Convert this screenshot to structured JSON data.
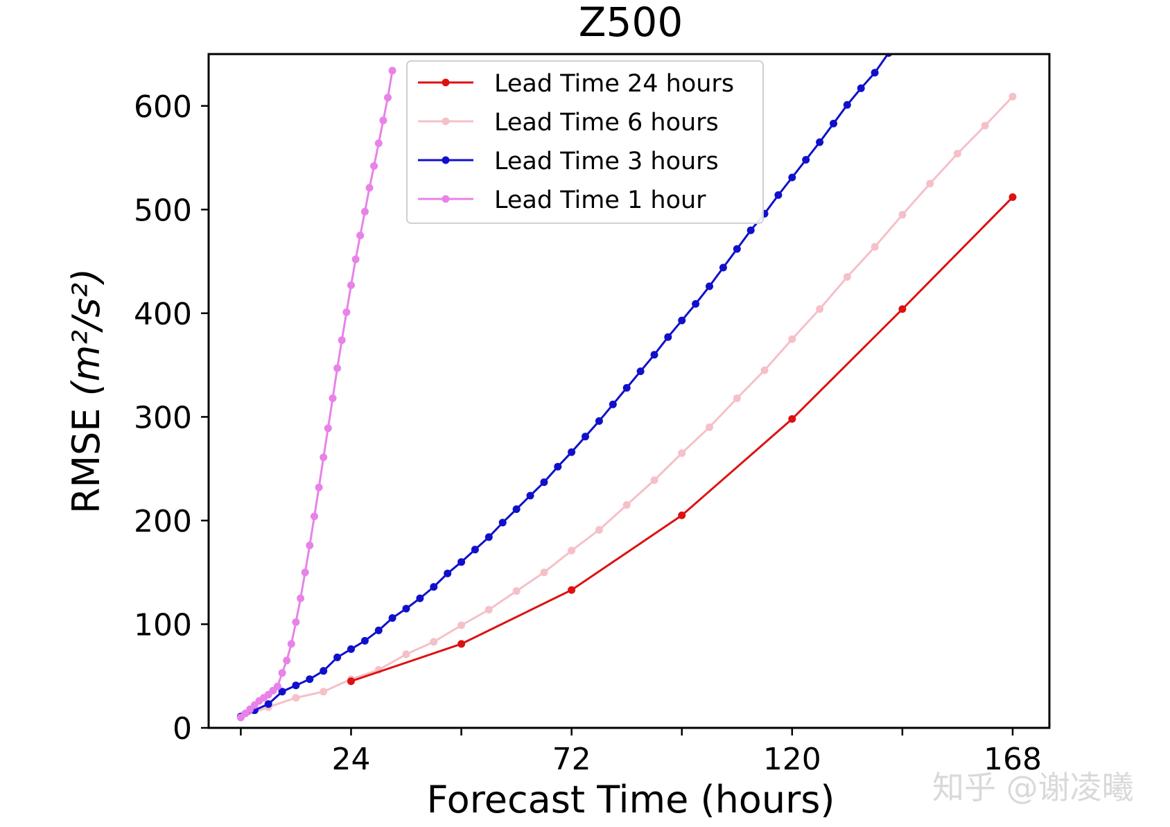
{
  "chart_data": {
    "type": "line",
    "title": "Z500",
    "xlabel": "Forecast Time (hours)",
    "ylabel_main": "RMSE ",
    "ylabel_math": "(m²/s²)",
    "xlim": [
      -7,
      176
    ],
    "ylim": [
      0,
      650
    ],
    "xticks": [
      0,
      24,
      48,
      72,
      96,
      120,
      144,
      168
    ],
    "xtick_labels": [
      "",
      "24",
      "",
      "72",
      "",
      "120",
      "",
      "168"
    ],
    "yticks": [
      0,
      100,
      200,
      300,
      400,
      500,
      600
    ],
    "ytick_labels": [
      "0",
      "100",
      "200",
      "300",
      "400",
      "500",
      "600"
    ],
    "grid": false,
    "legend_position": "upper-center",
    "series": [
      {
        "name": "Lead Time 24 hours",
        "color": "#dd1111",
        "x": [
          24,
          48,
          72,
          96,
          120,
          144,
          168
        ],
        "y": [
          45,
          81,
          133,
          205,
          298,
          404,
          512
        ]
      },
      {
        "name": "Lead Time 6 hours",
        "color": "#f5c0c8",
        "x": [
          0,
          6,
          12,
          18,
          24,
          30,
          36,
          42,
          48,
          54,
          60,
          66,
          72,
          78,
          84,
          90,
          96,
          102,
          108,
          114,
          120,
          126,
          132,
          138,
          144,
          150,
          156,
          162,
          168
        ],
        "y": [
          10,
          20,
          29,
          35,
          47,
          56,
          71,
          83,
          99,
          114,
          132,
          150,
          171,
          191,
          215,
          239,
          265,
          290,
          318,
          345,
          375,
          404,
          435,
          464,
          495,
          525,
          554,
          581,
          609
        ]
      },
      {
        "name": "Lead Time 3 hours",
        "color": "#1010cc",
        "x": [
          0,
          3,
          6,
          9,
          12,
          15,
          18,
          21,
          24,
          27,
          30,
          33,
          36,
          39,
          42,
          45,
          48,
          51,
          54,
          57,
          60,
          63,
          66,
          69,
          72,
          75,
          78,
          81,
          84,
          87,
          90,
          93,
          96,
          99,
          102,
          105,
          108,
          111,
          114,
          117,
          120,
          123,
          126,
          129,
          132,
          135,
          138,
          141,
          144
        ],
        "y": [
          11,
          17,
          23,
          35,
          41,
          47,
          55,
          68,
          76,
          84,
          94,
          106,
          115,
          125,
          136,
          149,
          160,
          172,
          184,
          198,
          211,
          224,
          237,
          252,
          266,
          281,
          296,
          312,
          328,
          344,
          360,
          377,
          393,
          409,
          426,
          444,
          462,
          480,
          496,
          514,
          531,
          548,
          565,
          583,
          601,
          617,
          632,
          651,
          669
        ]
      },
      {
        "name": "Lead Time 1 hour",
        "color": "#e882e8",
        "x": [
          0,
          1,
          2,
          3,
          4,
          5,
          6,
          7,
          8,
          9,
          10,
          11,
          12,
          13,
          14,
          15,
          16,
          17,
          18,
          19,
          20,
          21,
          22,
          23,
          24,
          25,
          26,
          27,
          28,
          29,
          30,
          31,
          32,
          33
        ],
        "y": [
          10,
          14,
          18,
          22,
          26,
          29,
          32,
          36,
          40,
          53,
          65,
          81,
          102,
          125,
          150,
          176,
          204,
          232,
          261,
          289,
          318,
          347,
          374,
          401,
          427,
          452,
          475,
          498,
          521,
          542,
          564,
          586,
          608,
          634
        ]
      }
    ]
  },
  "watermark": "知乎 @谢凌曦"
}
